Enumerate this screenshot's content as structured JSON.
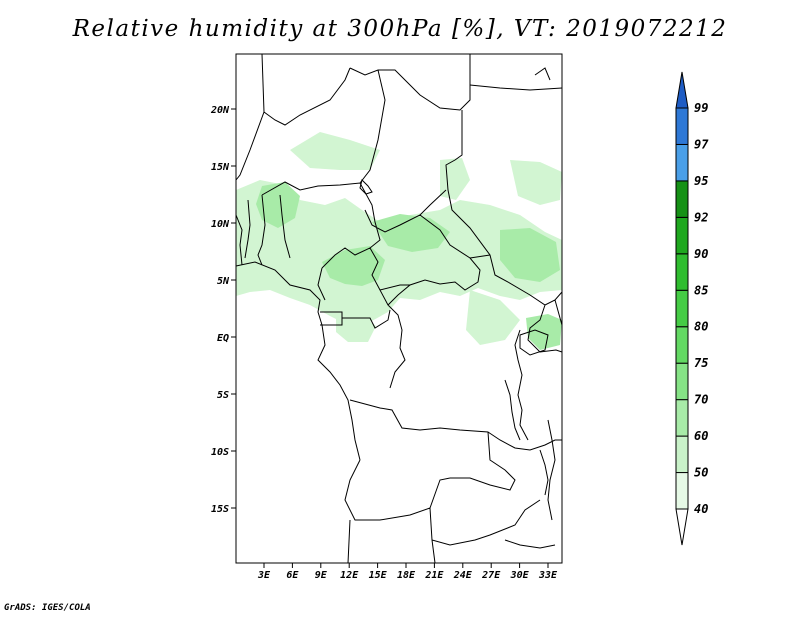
{
  "title": "Relative humidity at 300hPa [%], VT: 2019072212",
  "footer": "GrADS: IGES/COLA",
  "map": {
    "lat_labels": [
      "20N",
      "15N",
      "10N",
      "5N",
      "EQ",
      "5S",
      "10S",
      "15S"
    ],
    "lon_labels": [
      "3E",
      "6E",
      "9E",
      "12E",
      "15E",
      "18E",
      "21E",
      "24E",
      "27E",
      "30E",
      "33E"
    ]
  },
  "colorbar": {
    "levels": [
      "40",
      "50",
      "60",
      "70",
      "75",
      "80",
      "85",
      "90",
      "92",
      "95",
      "97",
      "99"
    ],
    "colors": [
      "#ffffff",
      "#e6f9e6",
      "#c9f2c9",
      "#a8eba8",
      "#86e386",
      "#63d963",
      "#45cc45",
      "#2fbd2f",
      "#1fa81f",
      "#169116",
      "#4a9fe8",
      "#2e78d6",
      "#1e5cc4"
    ]
  },
  "humidity_colors": {
    "light": "#d2f5d2",
    "mid": "#a8eba8",
    "strong": "#7fe07f"
  }
}
